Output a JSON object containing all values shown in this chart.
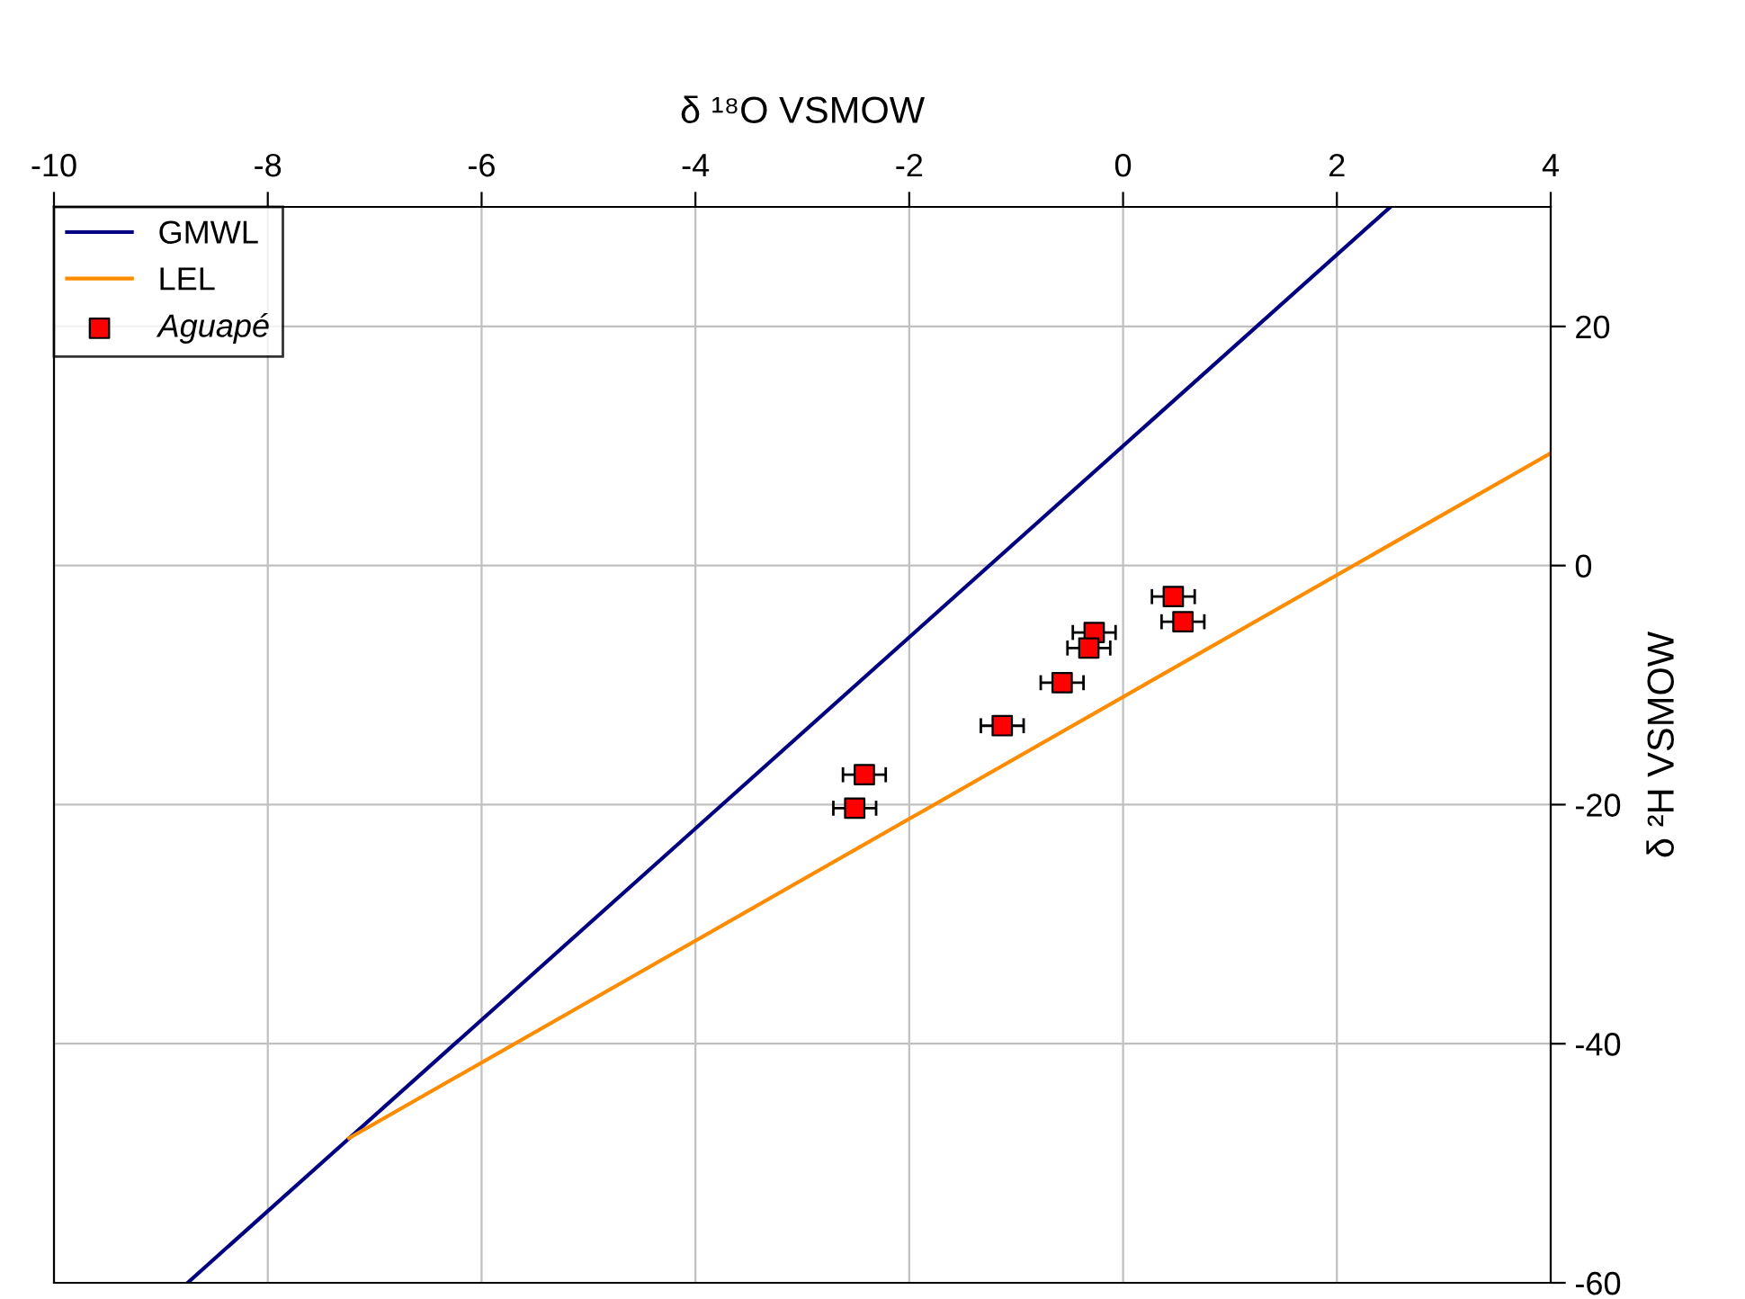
{
  "chart_data": {
    "type": "scatter",
    "xlabel": "δ ¹⁸O VSMOW",
    "ylabel": "δ ²H VSMOW",
    "xlim": [
      -10,
      4
    ],
    "ylim": [
      -60,
      30
    ],
    "xticks": [
      -10,
      -8,
      -6,
      -4,
      -2,
      0,
      2,
      4
    ],
    "yticks": [
      -60,
      -40,
      -20,
      0,
      20
    ],
    "grid": true,
    "legend": "top left",
    "series": [
      {
        "name": "GMWL",
        "type": "line",
        "color": "#000080",
        "x": [
          -8.75,
          2.5
        ],
        "values": [
          -60,
          30
        ],
        "marker": "none"
      },
      {
        "name": "LEL",
        "type": "line",
        "color": "#ff8c00",
        "x": [
          -7.24,
          4
        ],
        "values": [
          -47.9,
          9.4
        ],
        "marker": "none"
      },
      {
        "name": "Aguapé",
        "color": "#ff0000",
        "marker": "square",
        "x": [
          0.47,
          0.56,
          -0.27,
          -0.32,
          -0.57,
          -1.13,
          -2.42,
          -2.51
        ],
        "values": [
          -2.6,
          -4.7,
          -5.6,
          -6.9,
          -9.8,
          -13.4,
          -17.5,
          -20.3
        ],
        "xerrors": [
          0.2,
          0.2,
          0.2,
          0.2,
          0.2,
          0.2,
          0.2,
          0.2
        ]
      }
    ]
  }
}
